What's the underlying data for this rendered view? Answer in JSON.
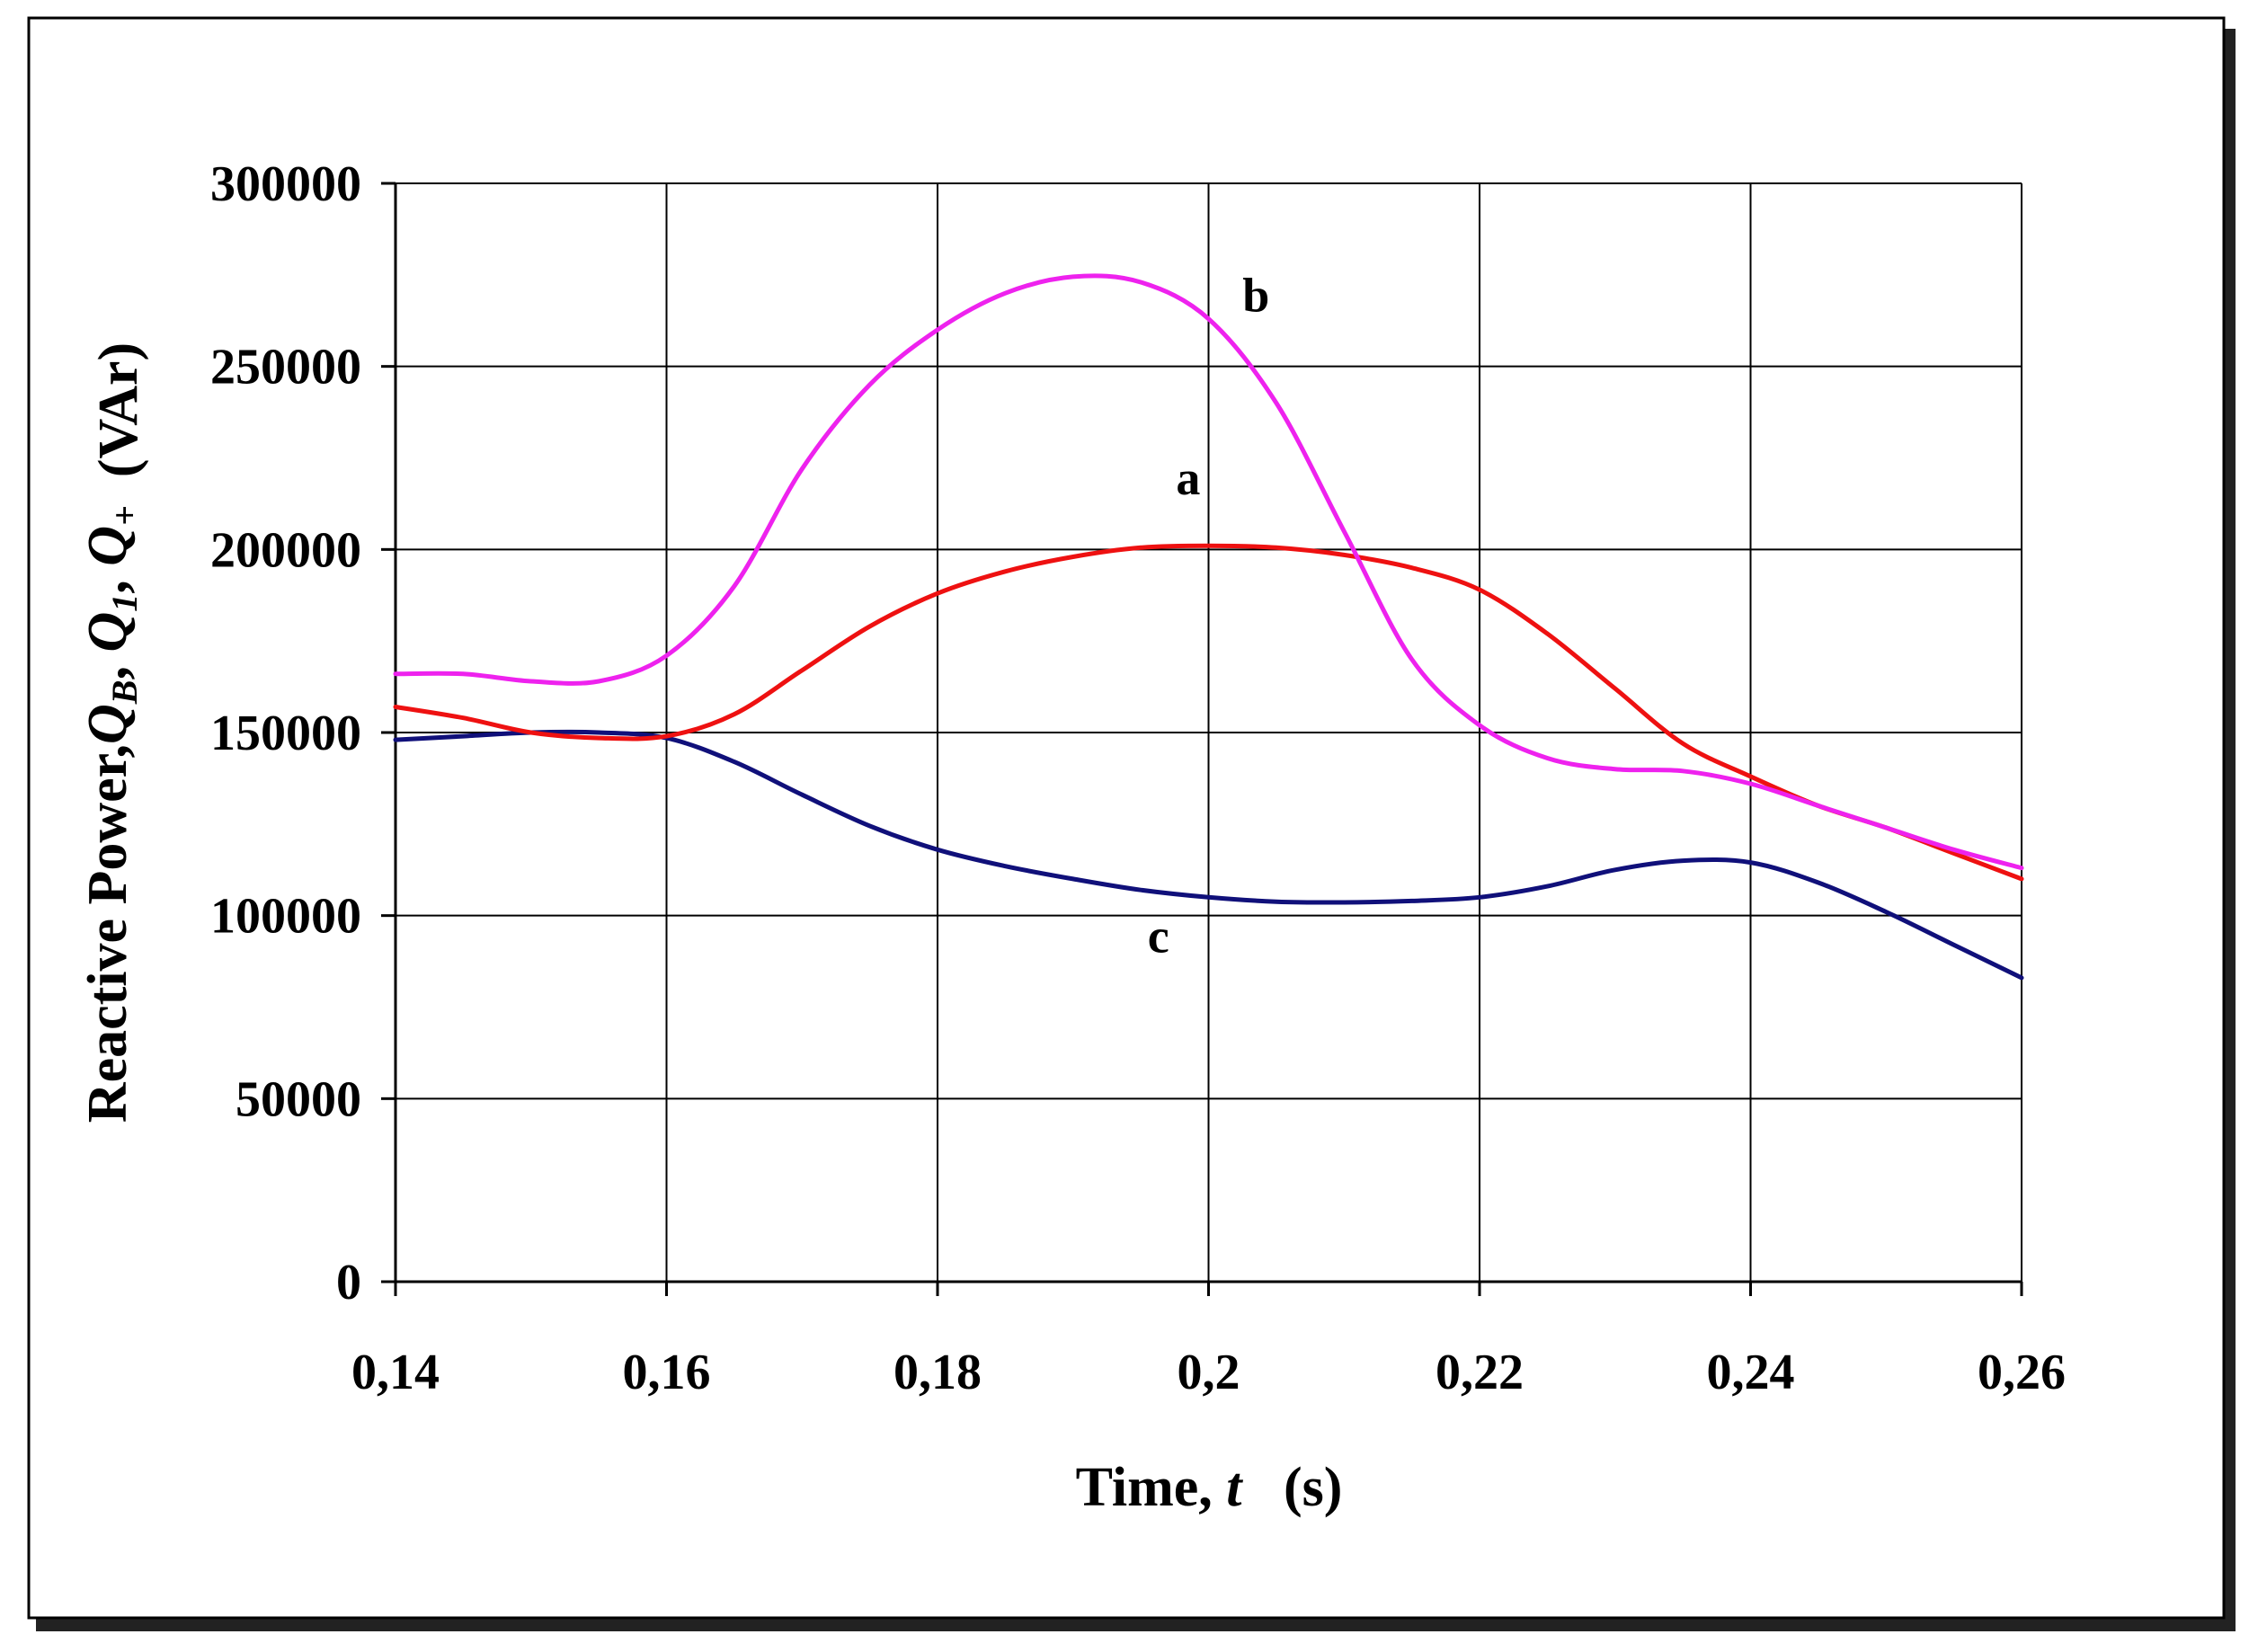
{
  "chart_data": {
    "type": "line",
    "xlabel": {
      "prefix": "Time, ",
      "var": "t",
      "suffix": "   (s)"
    },
    "ylabel": {
      "prefix": "Reactive Power,",
      "terms": [
        {
          "base": "Q",
          "sub": "B",
          "sep": ", "
        },
        {
          "base": "Q",
          "sub": "1",
          "sep": ", "
        },
        {
          "base": "Q",
          "sub": "+",
          "sep": ""
        }
      ],
      "suffix": "  (VAr)"
    },
    "xlim": [
      0.14,
      0.26
    ],
    "ylim": [
      0,
      300000
    ],
    "x_ticks": [
      {
        "value": 0.14,
        "label": "0,14"
      },
      {
        "value": 0.16,
        "label": "0,16"
      },
      {
        "value": 0.18,
        "label": "0,18"
      },
      {
        "value": 0.2,
        "label": "0,2"
      },
      {
        "value": 0.22,
        "label": "0,22"
      },
      {
        "value": 0.24,
        "label": "0,24"
      },
      {
        "value": 0.26,
        "label": "0,26"
      }
    ],
    "y_ticks": [
      {
        "value": 0,
        "label": "0"
      },
      {
        "value": 50000,
        "label": "50000"
      },
      {
        "value": 100000,
        "label": "100000"
      },
      {
        "value": 150000,
        "label": "150000"
      },
      {
        "value": 200000,
        "label": "200000"
      },
      {
        "value": 250000,
        "label": "250000"
      },
      {
        "value": 300000,
        "label": "300000"
      }
    ],
    "grid": true,
    "legend": "none",
    "series": [
      {
        "name": "a",
        "color": "#ee1111",
        "x": [
          0.14,
          0.145,
          0.15,
          0.155,
          0.16,
          0.165,
          0.17,
          0.175,
          0.18,
          0.185,
          0.19,
          0.195,
          0.2,
          0.205,
          0.21,
          0.215,
          0.22,
          0.225,
          0.23,
          0.235,
          0.24,
          0.245,
          0.25,
          0.255,
          0.26
        ],
        "y": [
          157000,
          154000,
          150000,
          148500,
          149000,
          155000,
          167000,
          179000,
          188000,
          194000,
          198000,
          200500,
          201000,
          200500,
          198500,
          195000,
          189000,
          177000,
          162000,
          147000,
          138000,
          130000,
          124000,
          117000,
          110000
        ]
      },
      {
        "name": "b",
        "color": "#ee22ee",
        "x": [
          0.14,
          0.145,
          0.15,
          0.155,
          0.16,
          0.165,
          0.17,
          0.175,
          0.18,
          0.185,
          0.19,
          0.195,
          0.2,
          0.205,
          0.21,
          0.215,
          0.22,
          0.225,
          0.23,
          0.235,
          0.24,
          0.245,
          0.25,
          0.255,
          0.26
        ],
        "y": [
          166000,
          166000,
          164000,
          164000,
          171000,
          190000,
          222000,
          245000,
          260000,
          270000,
          274500,
          273000,
          263000,
          240000,
          205000,
          170000,
          152000,
          143000,
          140000,
          139500,
          136000,
          130000,
          124000,
          118000,
          113000
        ]
      },
      {
        "name": "c",
        "color": "#10107a",
        "x": [
          0.14,
          0.145,
          0.15,
          0.155,
          0.16,
          0.165,
          0.17,
          0.175,
          0.18,
          0.185,
          0.19,
          0.195,
          0.2,
          0.205,
          0.21,
          0.215,
          0.22,
          0.225,
          0.23,
          0.235,
          0.24,
          0.245,
          0.25,
          0.255,
          0.26
        ],
        "y": [
          148000,
          149000,
          150000,
          150000,
          148500,
          142000,
          133000,
          124500,
          118000,
          113500,
          110000,
          107000,
          105000,
          103800,
          103600,
          104000,
          105000,
          108000,
          112500,
          115000,
          114500,
          109000,
          101000,
          92000,
          83000
        ]
      }
    ],
    "annotations": [
      {
        "text": "a",
        "x": 0.1985,
        "y": 215000
      },
      {
        "text": "b",
        "x": 0.2035,
        "y": 265000
      },
      {
        "text": "c",
        "x": 0.1963,
        "y": 90000
      }
    ]
  }
}
